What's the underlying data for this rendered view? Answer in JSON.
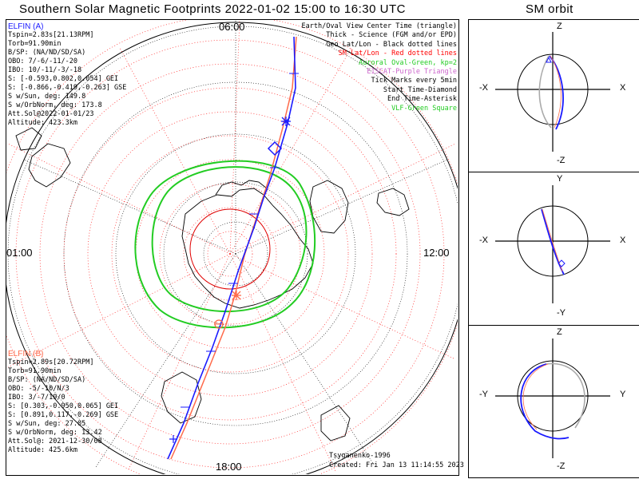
{
  "main_title": "Southern Solar Magnetic Footprints 2022-01-02 15:00 to 16:30 UTC",
  "orbit_title": "SM orbit",
  "time_labels": {
    "top": "06:00",
    "left": "01:00",
    "right": "12:00",
    "bottom": "18:00"
  },
  "elfin_a": {
    "name": "ELFIN (A)",
    "color": "#1a1aff",
    "lines": [
      "Tspin=2.83s[21.13RPM]",
      "Torb=91.90min",
      "B/SP: (NA/ND/SD/SA)",
      "OBO: 7/-6/-11/-20",
      "IBO: 10/-11/-3/-18",
      "S: [-0.593,0.802,0.054] GEI",
      "S: [-0.866,-0.419,-0.263] GSE",
      "S w/Sun, deg: 149.8",
      "S w/OrbNorm, deg: 173.8",
      "Att.Sol@2022-01-01/23",
      "Altitude: 423.3km"
    ]
  },
  "elfin_b": {
    "name": "ELFIN (B)",
    "color": "#ff6a4a",
    "lines": [
      "Tspin=2.89s[20.72RPM]",
      "Torb=91.90min",
      "B/SP: (NA/ND/SD/SA)",
      "OBO: -5/-10/N/3",
      "IBO: 3/-7/19/0",
      "S: [0.303,-0.950,0.065] GEI",
      "S: [0.891,0.117,-0.269] GSE",
      "S w/Sun, deg: 27.05",
      "S w/OrbNorm, deg: 13.42",
      "Att.Sol@: 2021-12-30/08",
      "Altitude: 425.6km"
    ]
  },
  "legend": [
    {
      "text": "Earth/Oval View Center Time (triangle)",
      "color": "#000000"
    },
    {
      "text": "Thick - Science (FGM and/or EPD)",
      "color": "#000000"
    },
    {
      "text": "Geo Lat/Lon - Black dotted lines",
      "color": "#000000"
    },
    {
      "text": "SM Lat/Lon - Red dotted lines",
      "color": "#ff0000"
    },
    {
      "text": "Auroral Oval-Green, kp=2",
      "color": "#22cc22"
    },
    {
      "text": "EISCAT-Purple Triangle",
      "color": "#cc66cc"
    },
    {
      "text": "Tick Marks every 5min",
      "color": "#000000"
    },
    {
      "text": "Start Time-Diamond",
      "color": "#000000"
    },
    {
      "text": "End Time-Asterisk",
      "color": "#000000"
    },
    {
      "text": "VLF-Green Square",
      "color": "#22cc22"
    }
  ],
  "credit": "Tsyganenko-1996",
  "created": "Created: Fri Jan 13 11:14:55 2023",
  "orbit_panels": [
    {
      "top": "Z",
      "bottom": "-Z",
      "left": "-X",
      "right": "X"
    },
    {
      "top": "Y",
      "bottom": "-Y",
      "left": "-X",
      "right": "X"
    },
    {
      "top": "Z",
      "bottom": "-Z",
      "left": "-Y",
      "right": "Y"
    }
  ]
}
